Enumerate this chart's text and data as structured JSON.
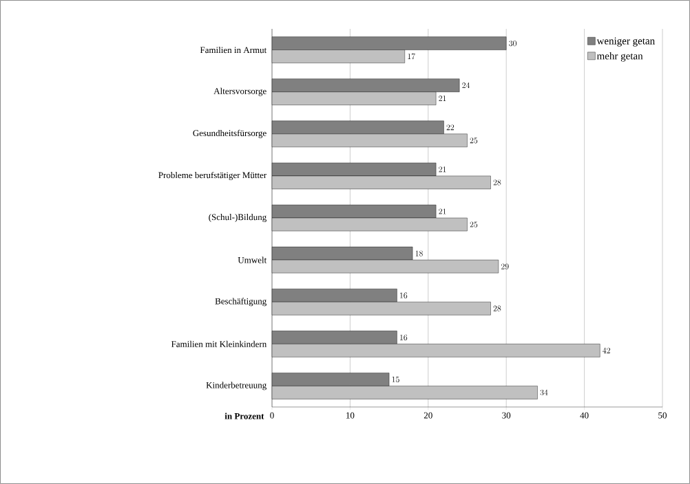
{
  "chart_data": {
    "type": "bar",
    "orientation": "horizontal",
    "xlabel": "in Prozent",
    "categories": [
      "Familien in Armut",
      "Altersvorsorge",
      "Gesundheitsfürsorge",
      "Probleme berufstätiger Mütter",
      "(Schul-)Bildung",
      "Umwelt",
      "Beschäftigung",
      "Familien mit Kleinkindern",
      "Kinderbetreuung"
    ],
    "series": [
      {
        "name": "weniger getan",
        "color": "#808080",
        "values": [
          30,
          24,
          22,
          21,
          21,
          18,
          16,
          16,
          15
        ]
      },
      {
        "name": "mehr getan",
        "color": "#c0c0c0",
        "values": [
          17,
          21,
          25,
          28,
          25,
          29,
          28,
          42,
          34
        ]
      }
    ],
    "xlim": [
      0,
      50
    ],
    "xticks": [
      0,
      10,
      20,
      30,
      40,
      50
    ],
    "grid": "x",
    "legend": "top right",
    "data_labels": true
  }
}
